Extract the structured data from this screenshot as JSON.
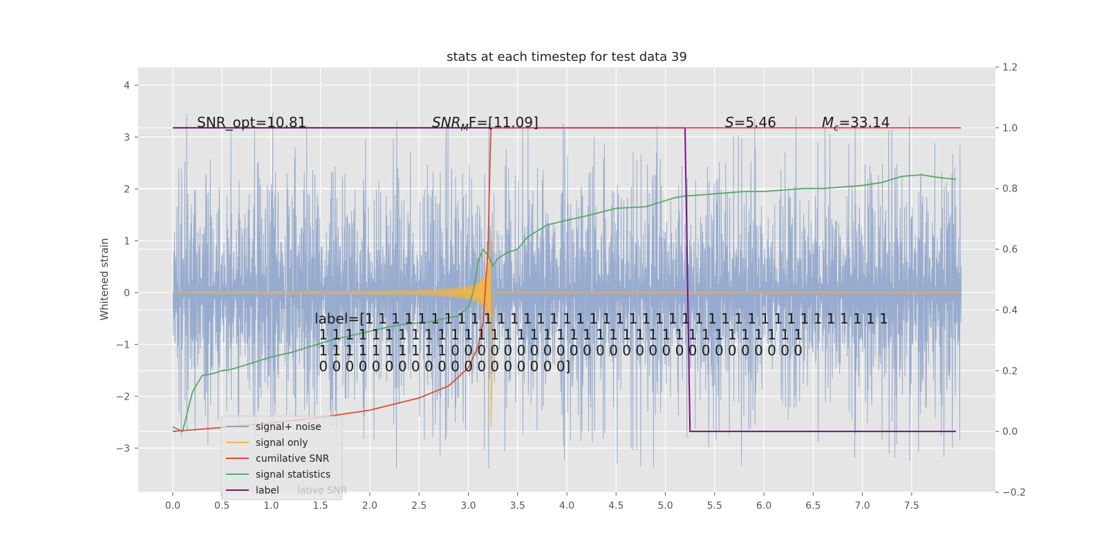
{
  "chart_data": {
    "type": "line",
    "title": "stats at each timestep for test data 39",
    "ylabel": "Whitened strain",
    "xlabel": "",
    "x_ticks": [
      "0.0",
      "0.5",
      "1.0",
      "1.5",
      "2.0",
      "2.5",
      "3.0",
      "3.5",
      "4.0",
      "4.5",
      "5.0",
      "5.5",
      "6.0",
      "6.5",
      "7.0",
      "7.5"
    ],
    "y_left_ticks": [
      "4",
      "3",
      "2",
      "1",
      "0",
      "−1",
      "−2",
      "−3"
    ],
    "y_right_ticks": [
      "1.2",
      "1.0",
      "0.8",
      "0.6",
      "0.4",
      "0.2",
      "0.0",
      "−0.2"
    ],
    "xlim": [
      -0.35,
      8.35
    ],
    "ylim_left": [
      -3.85,
      4.35
    ],
    "ylim_right": [
      -0.2,
      1.2
    ],
    "grid": true,
    "legend_position": "lower-left",
    "colors": {
      "background": "#e5e5e5",
      "grid": "#ffffff",
      "signal_noise": "#8ea4cb",
      "signal_only": "#f0b548",
      "cumulative_snr": "#e24a33",
      "signal_statistics": "#55a868",
      "label": "#7a0f80"
    },
    "annotations": {
      "snr_opt": "SNR_opt=10.81",
      "snr_mf_italic": "SNR",
      "snr_mf_sub": "M",
      "snr_mf_rest": "F=[11.09]",
      "s_italic": "S",
      "s_rest": "=5.46",
      "mc_italic": "M",
      "mc_sub": "c",
      "mc_rest": "=33.14",
      "label_lines": [
        "label=[1 1 1 1 1 1 1 1 1 1 1 1 1 1 1 1 1 1 1 1 1 1 1 1 1 1 1 1 1 1 1 1 1 1 1 1 1 1 1 1",
        " 1 1 1 1 1 1 1 1 1 1 1 1 1 1 1 1 1 1 1 1 1 1 1 1 1 1 1 1 1 1 1 1 1 1 1 1 1",
        " 1 1 1 1 1 1 1 1 1 1 0 0 0 0 0 0 0 0 0 0 0 0 0 0 0 0 0 0 0 0 0 0 0 0 0 0 0",
        " 0 0 0 0 0 0 0 0 0 0 0 0 0 0 0 0 0 0 0]"
      ]
    },
    "legend": [
      {
        "key": "signal_noise",
        "label": "signal+ noise"
      },
      {
        "key": "signal_only",
        "label": "signal only"
      },
      {
        "key": "cumulative_snr",
        "label": "cumilative SNR"
      },
      {
        "key": "signal_statistics",
        "label": "signal statistics"
      },
      {
        "key": "label",
        "label": "label"
      }
    ],
    "legend_ghost_text": "lative SNR",
    "series": [
      {
        "name": "signal+ noise",
        "axis": "left",
        "x_range": [
          0,
          8.0
        ],
        "band_envelope": {
          "typical_half_width": 1.7,
          "spike_max": 4.0,
          "spike_min": -3.4
        }
      },
      {
        "name": "signal only",
        "axis": "left",
        "chirp": {
          "start": 0,
          "merger": 3.23,
          "end": 8.0,
          "peak_amplitude": 3.9
        }
      },
      {
        "name": "cumilative SNR",
        "axis": "right",
        "x": [
          0,
          0.5,
          1.0,
          1.5,
          2.0,
          2.5,
          2.8,
          3.0,
          3.1,
          3.15,
          3.2,
          3.22,
          3.23,
          3.25,
          8.0
        ],
        "y": [
          0.0,
          0.013,
          0.028,
          0.046,
          0.07,
          0.11,
          0.15,
          0.21,
          0.28,
          0.36,
          0.6,
          0.88,
          1.0,
          1.0,
          1.0
        ]
      },
      {
        "name": "signal statistics",
        "axis": "right",
        "x": [
          0,
          0.1,
          0.2,
          0.3,
          0.4,
          0.5,
          0.6,
          0.8,
          1.0,
          1.2,
          1.4,
          1.6,
          1.8,
          2.0,
          2.2,
          2.4,
          2.6,
          2.8,
          2.9,
          3.0,
          3.05,
          3.1,
          3.15,
          3.2,
          3.25,
          3.3,
          3.4,
          3.5,
          3.6,
          3.8,
          4.0,
          4.2,
          4.5,
          4.8,
          5.0,
          5.1,
          5.2,
          5.4,
          5.6,
          5.8,
          6.0,
          6.2,
          6.4,
          6.6,
          6.8,
          7.0,
          7.2,
          7.4,
          7.6,
          7.8,
          7.95
        ],
        "y": [
          0.015,
          0.0,
          0.13,
          0.185,
          0.19,
          0.2,
          0.205,
          0.225,
          0.245,
          0.26,
          0.28,
          0.3,
          0.315,
          0.33,
          0.345,
          0.355,
          0.36,
          0.375,
          0.38,
          0.41,
          0.46,
          0.56,
          0.6,
          0.58,
          0.545,
          0.57,
          0.59,
          0.6,
          0.64,
          0.68,
          0.695,
          0.71,
          0.735,
          0.74,
          0.76,
          0.77,
          0.775,
          0.78,
          0.785,
          0.79,
          0.79,
          0.795,
          0.8,
          0.8,
          0.805,
          0.81,
          0.82,
          0.84,
          0.845,
          0.835,
          0.83
        ]
      },
      {
        "name": "label",
        "axis": "right",
        "x": [
          0,
          5.2,
          5.25,
          7.95
        ],
        "y": [
          1.0,
          1.0,
          0.0,
          0.0
        ]
      }
    ]
  }
}
